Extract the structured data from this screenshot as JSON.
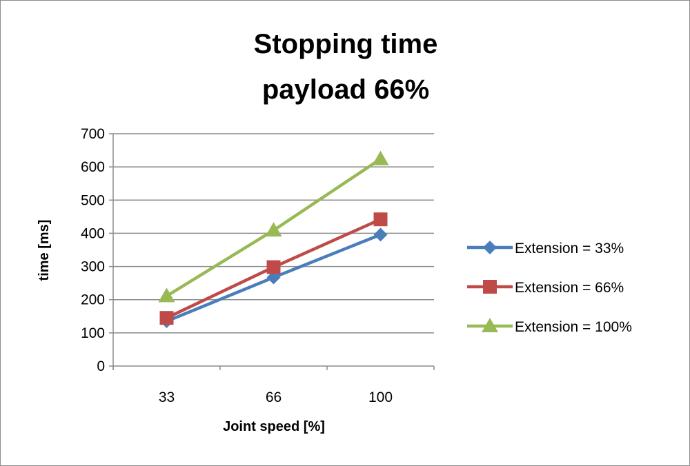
{
  "chart_data": {
    "type": "line",
    "title": [
      "Stopping time",
      "payload 66%"
    ],
    "xlabel": "Joint speed [%]",
    "ylabel": "time [ms]",
    "categories": [
      "33",
      "66",
      "100"
    ],
    "ylim": [
      0,
      700
    ],
    "yticks": [
      "0",
      "100",
      "200",
      "300",
      "400",
      "500",
      "600",
      "700"
    ],
    "grid": true,
    "legend_position": "right",
    "series": [
      {
        "name": "Extension = 33%",
        "values": [
          135,
          267,
          396
        ],
        "color": "#4a7ebb",
        "marker": "diamond"
      },
      {
        "name": "Extension = 66%",
        "values": [
          145,
          298,
          442
        ],
        "color": "#be4b48",
        "marker": "square"
      },
      {
        "name": "Extension = 100%",
        "values": [
          211,
          409,
          624
        ],
        "color": "#98b954",
        "marker": "triangle"
      }
    ]
  }
}
